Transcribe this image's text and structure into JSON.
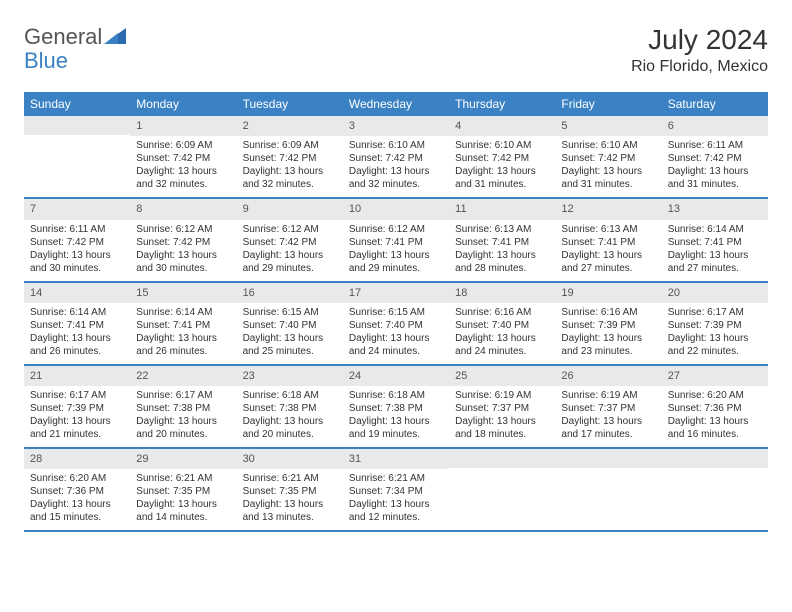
{
  "logo": {
    "general": "General",
    "blue": "Blue"
  },
  "header": {
    "month": "July 2024",
    "location": "Rio Florido, Mexico"
  },
  "colors": {
    "brand": "#3b82c4",
    "headrow_bg": "#e8e9ea",
    "text": "#333333"
  },
  "daynames": [
    "Sunday",
    "Monday",
    "Tuesday",
    "Wednesday",
    "Thursday",
    "Friday",
    "Saturday"
  ],
  "weeks": [
    [
      {
        "day": "",
        "sunrise": "",
        "sunset": "",
        "daylight": ""
      },
      {
        "day": "1",
        "sunrise": "Sunrise: 6:09 AM",
        "sunset": "Sunset: 7:42 PM",
        "daylight": "Daylight: 13 hours and 32 minutes."
      },
      {
        "day": "2",
        "sunrise": "Sunrise: 6:09 AM",
        "sunset": "Sunset: 7:42 PM",
        "daylight": "Daylight: 13 hours and 32 minutes."
      },
      {
        "day": "3",
        "sunrise": "Sunrise: 6:10 AM",
        "sunset": "Sunset: 7:42 PM",
        "daylight": "Daylight: 13 hours and 32 minutes."
      },
      {
        "day": "4",
        "sunrise": "Sunrise: 6:10 AM",
        "sunset": "Sunset: 7:42 PM",
        "daylight": "Daylight: 13 hours and 31 minutes."
      },
      {
        "day": "5",
        "sunrise": "Sunrise: 6:10 AM",
        "sunset": "Sunset: 7:42 PM",
        "daylight": "Daylight: 13 hours and 31 minutes."
      },
      {
        "day": "6",
        "sunrise": "Sunrise: 6:11 AM",
        "sunset": "Sunset: 7:42 PM",
        "daylight": "Daylight: 13 hours and 31 minutes."
      }
    ],
    [
      {
        "day": "7",
        "sunrise": "Sunrise: 6:11 AM",
        "sunset": "Sunset: 7:42 PM",
        "daylight": "Daylight: 13 hours and 30 minutes."
      },
      {
        "day": "8",
        "sunrise": "Sunrise: 6:12 AM",
        "sunset": "Sunset: 7:42 PM",
        "daylight": "Daylight: 13 hours and 30 minutes."
      },
      {
        "day": "9",
        "sunrise": "Sunrise: 6:12 AM",
        "sunset": "Sunset: 7:42 PM",
        "daylight": "Daylight: 13 hours and 29 minutes."
      },
      {
        "day": "10",
        "sunrise": "Sunrise: 6:12 AM",
        "sunset": "Sunset: 7:41 PM",
        "daylight": "Daylight: 13 hours and 29 minutes."
      },
      {
        "day": "11",
        "sunrise": "Sunrise: 6:13 AM",
        "sunset": "Sunset: 7:41 PM",
        "daylight": "Daylight: 13 hours and 28 minutes."
      },
      {
        "day": "12",
        "sunrise": "Sunrise: 6:13 AM",
        "sunset": "Sunset: 7:41 PM",
        "daylight": "Daylight: 13 hours and 27 minutes."
      },
      {
        "day": "13",
        "sunrise": "Sunrise: 6:14 AM",
        "sunset": "Sunset: 7:41 PM",
        "daylight": "Daylight: 13 hours and 27 minutes."
      }
    ],
    [
      {
        "day": "14",
        "sunrise": "Sunrise: 6:14 AM",
        "sunset": "Sunset: 7:41 PM",
        "daylight": "Daylight: 13 hours and 26 minutes."
      },
      {
        "day": "15",
        "sunrise": "Sunrise: 6:14 AM",
        "sunset": "Sunset: 7:41 PM",
        "daylight": "Daylight: 13 hours and 26 minutes."
      },
      {
        "day": "16",
        "sunrise": "Sunrise: 6:15 AM",
        "sunset": "Sunset: 7:40 PM",
        "daylight": "Daylight: 13 hours and 25 minutes."
      },
      {
        "day": "17",
        "sunrise": "Sunrise: 6:15 AM",
        "sunset": "Sunset: 7:40 PM",
        "daylight": "Daylight: 13 hours and 24 minutes."
      },
      {
        "day": "18",
        "sunrise": "Sunrise: 6:16 AM",
        "sunset": "Sunset: 7:40 PM",
        "daylight": "Daylight: 13 hours and 24 minutes."
      },
      {
        "day": "19",
        "sunrise": "Sunrise: 6:16 AM",
        "sunset": "Sunset: 7:39 PM",
        "daylight": "Daylight: 13 hours and 23 minutes."
      },
      {
        "day": "20",
        "sunrise": "Sunrise: 6:17 AM",
        "sunset": "Sunset: 7:39 PM",
        "daylight": "Daylight: 13 hours and 22 minutes."
      }
    ],
    [
      {
        "day": "21",
        "sunrise": "Sunrise: 6:17 AM",
        "sunset": "Sunset: 7:39 PM",
        "daylight": "Daylight: 13 hours and 21 minutes."
      },
      {
        "day": "22",
        "sunrise": "Sunrise: 6:17 AM",
        "sunset": "Sunset: 7:38 PM",
        "daylight": "Daylight: 13 hours and 20 minutes."
      },
      {
        "day": "23",
        "sunrise": "Sunrise: 6:18 AM",
        "sunset": "Sunset: 7:38 PM",
        "daylight": "Daylight: 13 hours and 20 minutes."
      },
      {
        "day": "24",
        "sunrise": "Sunrise: 6:18 AM",
        "sunset": "Sunset: 7:38 PM",
        "daylight": "Daylight: 13 hours and 19 minutes."
      },
      {
        "day": "25",
        "sunrise": "Sunrise: 6:19 AM",
        "sunset": "Sunset: 7:37 PM",
        "daylight": "Daylight: 13 hours and 18 minutes."
      },
      {
        "day": "26",
        "sunrise": "Sunrise: 6:19 AM",
        "sunset": "Sunset: 7:37 PM",
        "daylight": "Daylight: 13 hours and 17 minutes."
      },
      {
        "day": "27",
        "sunrise": "Sunrise: 6:20 AM",
        "sunset": "Sunset: 7:36 PM",
        "daylight": "Daylight: 13 hours and 16 minutes."
      }
    ],
    [
      {
        "day": "28",
        "sunrise": "Sunrise: 6:20 AM",
        "sunset": "Sunset: 7:36 PM",
        "daylight": "Daylight: 13 hours and 15 minutes."
      },
      {
        "day": "29",
        "sunrise": "Sunrise: 6:21 AM",
        "sunset": "Sunset: 7:35 PM",
        "daylight": "Daylight: 13 hours and 14 minutes."
      },
      {
        "day": "30",
        "sunrise": "Sunrise: 6:21 AM",
        "sunset": "Sunset: 7:35 PM",
        "daylight": "Daylight: 13 hours and 13 minutes."
      },
      {
        "day": "31",
        "sunrise": "Sunrise: 6:21 AM",
        "sunset": "Sunset: 7:34 PM",
        "daylight": "Daylight: 13 hours and 12 minutes."
      },
      {
        "day": "",
        "sunrise": "",
        "sunset": "",
        "daylight": ""
      },
      {
        "day": "",
        "sunrise": "",
        "sunset": "",
        "daylight": ""
      },
      {
        "day": "",
        "sunrise": "",
        "sunset": "",
        "daylight": ""
      }
    ]
  ]
}
